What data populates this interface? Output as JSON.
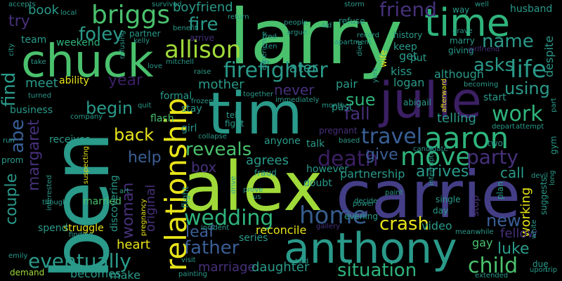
{
  "colors": {
    "background": "#000000",
    "yellow": "#e8e419",
    "green": "#4ac16d",
    "teal": "#2a9a8a",
    "blue": "#3a5f96",
    "purple": "#46307a",
    "indigo": "#433e85",
    "darkpurple": "#3b1f63",
    "lime": "#a0da39",
    "mint": "#2fb47c",
    "slate": "#365c8d"
  },
  "words": [
    {
      "text": "larry",
      "color": "green"
    },
    {
      "text": "ben",
      "color": "teal"
    },
    {
      "text": "alex",
      "color": "lime"
    },
    {
      "text": "carrie",
      "color": "indigo"
    },
    {
      "text": "tim",
      "color": "teal"
    },
    {
      "text": "chuck",
      "color": "green"
    },
    {
      "text": "julie",
      "color": "darkpurple"
    },
    {
      "text": "anthony",
      "color": "teal"
    },
    {
      "text": "relationship",
      "color": "yellow"
    },
    {
      "text": "time",
      "color": "mint"
    },
    {
      "text": "briggs",
      "color": "green"
    },
    {
      "text": "allison",
      "color": "lime"
    },
    {
      "text": "firefighter",
      "color": "teal"
    },
    {
      "text": "aaron",
      "color": "mint"
    },
    {
      "text": "move",
      "color": "mint"
    },
    {
      "text": "home",
      "color": "slate"
    },
    {
      "text": "wedding",
      "color": "mint"
    },
    {
      "text": "death",
      "color": "darkpurple"
    },
    {
      "text": "life",
      "color": "teal"
    },
    {
      "text": "crash",
      "color": "yellow"
    },
    {
      "text": "situation",
      "color": "mint"
    },
    {
      "text": "child",
      "color": "green"
    },
    {
      "text": "father",
      "color": "blue"
    },
    {
      "text": "eventually",
      "color": "teal"
    },
    {
      "text": "travel",
      "color": "blue"
    },
    {
      "text": "work",
      "color": "mint"
    },
    {
      "text": "party",
      "color": "purple"
    },
    {
      "text": "friend",
      "color": "purple"
    },
    {
      "text": "name",
      "color": "teal"
    },
    {
      "text": "asks",
      "color": "teal"
    },
    {
      "text": "reveals",
      "color": "green"
    },
    {
      "text": "fire",
      "color": "teal"
    },
    {
      "text": "foley",
      "color": "teal"
    },
    {
      "text": "find",
      "color": "teal"
    },
    {
      "text": "abe",
      "color": "blue"
    },
    {
      "text": "margaret",
      "color": "purple"
    },
    {
      "text": "couple",
      "color": "teal"
    },
    {
      "text": "woman",
      "color": "purple"
    },
    {
      "text": "back",
      "color": "yellow"
    },
    {
      "text": "begin",
      "color": "teal"
    },
    {
      "text": "year",
      "color": "darkpurple"
    },
    {
      "text": "help",
      "color": "blue"
    },
    {
      "text": "box",
      "color": "purple"
    },
    {
      "text": "give",
      "color": "blue"
    },
    {
      "text": "arrives",
      "color": "teal"
    },
    {
      "text": "call",
      "color": "teal"
    },
    {
      "text": "new",
      "color": "blue"
    },
    {
      "text": "luke",
      "color": "teal"
    },
    {
      "text": "working",
      "color": "yellow"
    },
    {
      "text": "later",
      "color": "teal"
    },
    {
      "text": "never",
      "color": "purple"
    },
    {
      "text": "sue",
      "color": "mint"
    },
    {
      "text": "fall",
      "color": "purple"
    },
    {
      "text": "using",
      "color": "teal"
    },
    {
      "text": "telling",
      "color": "teal"
    },
    {
      "text": "mother",
      "color": "teal"
    },
    {
      "text": "try",
      "color": "purple"
    },
    {
      "text": "book",
      "color": "teal"
    },
    {
      "text": "meet",
      "color": "teal"
    },
    {
      "text": "weekend",
      "color": "mint"
    },
    {
      "text": "team",
      "color": "teal"
    },
    {
      "text": "boyfriend",
      "color": "teal"
    },
    {
      "text": "marriage",
      "color": "purple"
    },
    {
      "text": "daughter",
      "color": "teal"
    },
    {
      "text": "heart",
      "color": "yellow"
    },
    {
      "text": "leaf",
      "color": "blue"
    },
    {
      "text": "original",
      "color": "purple"
    },
    {
      "text": "agrees",
      "color": "teal"
    },
    {
      "text": "however",
      "color": "teal"
    },
    {
      "text": "partnership",
      "color": "teal"
    },
    {
      "text": "reconcile",
      "color": "yellow"
    },
    {
      "text": "video",
      "color": "teal"
    },
    {
      "text": "fellow",
      "color": "purple"
    },
    {
      "text": "gay",
      "color": "green"
    },
    {
      "text": "series",
      "color": "teal"
    },
    {
      "text": "becomes",
      "color": "teal"
    },
    {
      "text": "make",
      "color": "teal"
    },
    {
      "text": "demand",
      "color": "lime"
    },
    {
      "text": "married",
      "color": "green"
    },
    {
      "text": "struggle",
      "color": "yellow"
    },
    {
      "text": "spend",
      "color": "teal"
    },
    {
      "text": "formal",
      "color": "teal"
    },
    {
      "text": "flash",
      "color": "green"
    },
    {
      "text": "girl",
      "color": "teal"
    },
    {
      "text": "stay",
      "color": "teal"
    },
    {
      "text": "kiss",
      "color": "teal"
    },
    {
      "text": "pair",
      "color": "teal"
    },
    {
      "text": "logan",
      "color": "teal"
    },
    {
      "text": "although",
      "color": "teal"
    },
    {
      "text": "keep",
      "color": "teal"
    },
    {
      "text": "get",
      "color": "teal"
    },
    {
      "text": "put",
      "color": "teal"
    },
    {
      "text": "marry",
      "color": "teal"
    },
    {
      "text": "husband",
      "color": "teal"
    },
    {
      "text": "despite",
      "color": "teal"
    },
    {
      "text": "ability",
      "color": "yellow"
    },
    {
      "text": "business",
      "color": "teal"
    },
    {
      "text": "receives",
      "color": "teal"
    },
    {
      "text": "talk",
      "color": "teal"
    },
    {
      "text": "anyone",
      "color": "teal"
    },
    {
      "text": "doubt",
      "color": "teal"
    },
    {
      "text": "past",
      "color": "teal"
    },
    {
      "text": "start",
      "color": "teal"
    },
    {
      "text": "abigail",
      "color": "teal"
    },
    {
      "text": "accepts",
      "color": "teal"
    },
    {
      "text": "survived",
      "color": "teal"
    },
    {
      "text": "storm",
      "color": "teal"
    },
    {
      "text": "local",
      "color": "teal"
    },
    {
      "text": "partner",
      "color": "teal"
    },
    {
      "text": "refuse",
      "color": "teal"
    },
    {
      "text": "way",
      "color": "teal"
    },
    {
      "text": "well",
      "color": "teal"
    },
    {
      "text": "history",
      "color": "teal"
    },
    {
      "text": "giving",
      "color": "teal"
    },
    {
      "text": "girlfriend",
      "color": "purple"
    },
    {
      "text": "tell",
      "color": "teal"
    },
    {
      "text": "fight",
      "color": "teal"
    },
    {
      "text": "together",
      "color": "teal"
    },
    {
      "text": "immediately",
      "color": "teal"
    },
    {
      "text": "month",
      "color": "teal"
    },
    {
      "text": "pregnant",
      "color": "purple"
    },
    {
      "text": "two",
      "color": "teal"
    },
    {
      "text": "gym",
      "color": "teal"
    },
    {
      "text": "plan",
      "color": "teal"
    },
    {
      "text": "single",
      "color": "teal"
    },
    {
      "text": "day",
      "color": "teal"
    },
    {
      "text": "stop",
      "color": "purple"
    },
    {
      "text": "evening",
      "color": "teal"
    },
    {
      "text": "power",
      "color": "teal"
    },
    {
      "text": "incident",
      "color": "teal"
    },
    {
      "text": "gallery",
      "color": "purple"
    },
    {
      "text": "due",
      "color": "teal"
    },
    {
      "text": "upon",
      "color": "teal"
    },
    {
      "text": "trip",
      "color": "teal"
    },
    {
      "text": "extended",
      "color": "teal"
    },
    {
      "text": "visit",
      "color": "teal"
    },
    {
      "text": "painting",
      "color": "teal"
    },
    {
      "text": "emily",
      "color": "teal"
    },
    {
      "text": "finding",
      "color": "teal"
    },
    {
      "text": "discovering",
      "color": "teal"
    },
    {
      "text": "pregnancy",
      "color": "yellow"
    },
    {
      "text": "suspecting",
      "color": "yellow"
    },
    {
      "text": "interested",
      "color": "teal"
    },
    {
      "text": "though",
      "color": "teal"
    },
    {
      "text": "art",
      "color": "teal"
    },
    {
      "text": "flight",
      "color": "teal"
    },
    {
      "text": "us",
      "color": "teal"
    },
    {
      "text": "fraud",
      "color": "teal"
    },
    {
      "text": "drive",
      "color": "teal"
    },
    {
      "text": "prove",
      "color": "teal"
    },
    {
      "text": "collapse",
      "color": "teal"
    },
    {
      "text": "frozen",
      "color": "teal"
    },
    {
      "text": "mitchell",
      "color": "teal"
    },
    {
      "text": "arrive",
      "color": "purple"
    },
    {
      "text": "love",
      "color": "teal"
    },
    {
      "text": "raise",
      "color": "teal"
    },
    {
      "text": "benefit",
      "color": "teal"
    },
    {
      "text": "kelly",
      "color": "teal"
    },
    {
      "text": "refusing",
      "color": "teal"
    },
    {
      "text": "take",
      "color": "teal"
    },
    {
      "text": "city",
      "color": "teal"
    },
    {
      "text": "turned",
      "color": "teal"
    },
    {
      "text": "company",
      "color": "teal"
    },
    {
      "text": "quit",
      "color": "teal"
    },
    {
      "text": "run",
      "color": "teal"
    },
    {
      "text": "prom",
      "color": "teal"
    },
    {
      "text": "return",
      "color": "teal"
    },
    {
      "text": "fred",
      "color": "teal"
    },
    {
      "text": "ten",
      "color": "teal"
    },
    {
      "text": "people",
      "color": "teal"
    },
    {
      "text": "argue",
      "color": "teal"
    },
    {
      "text": "sid",
      "color": "teal"
    },
    {
      "text": "record",
      "color": "teal"
    },
    {
      "text": "grave",
      "color": "teal"
    },
    {
      "text": "apartment",
      "color": "teal"
    },
    {
      "text": "died",
      "color": "teal"
    },
    {
      "text": "york",
      "color": "teal"
    },
    {
      "text": "wife",
      "color": "yellow"
    },
    {
      "text": "experience",
      "color": "teal"
    },
    {
      "text": "based",
      "color": "teal"
    },
    {
      "text": "afterward",
      "color": "yellow"
    },
    {
      "text": "becoming",
      "color": "teal"
    },
    {
      "text": "depart",
      "color": "teal"
    },
    {
      "text": "attempt",
      "color": "teal"
    },
    {
      "text": "candidate",
      "color": "teal"
    },
    {
      "text": "decide",
      "color": "teal"
    },
    {
      "text": "interrupted",
      "color": "teal"
    },
    {
      "text": "paint",
      "color": "teal"
    },
    {
      "text": "meanwhile",
      "color": "teal"
    },
    {
      "text": "white",
      "color": "teal"
    },
    {
      "text": "devil",
      "color": "teal"
    },
    {
      "text": "long",
      "color": "teal"
    },
    {
      "text": "suggests",
      "color": "teal"
    },
    {
      "text": "part",
      "color": "teal"
    },
    {
      "text": "told",
      "color": "teal"
    }
  ]
}
